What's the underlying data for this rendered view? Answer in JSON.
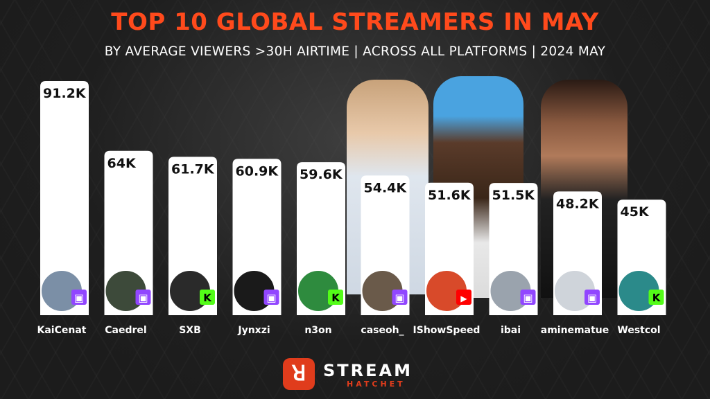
{
  "title": "TOP 10 GLOBAL STREAMERS IN MAY",
  "subtitle": "BY AVERAGE VIEWERS >30H AIRTIME | ACROSS ALL PLATFORMS | 2024 MAY",
  "logo": {
    "main": "STREAM",
    "sub": "HATCHET"
  },
  "colors": {
    "title": "#ff4a1c",
    "bar": "#ffffff",
    "twitch": "#9146ff",
    "kick": "#53fc18",
    "youtube": "#ff0000"
  },
  "chart_data": {
    "type": "bar",
    "categories": [
      "KaiCenat",
      "Caedrel",
      "SXB",
      "Jynxzi",
      "n3on",
      "caseoh_",
      "IShowSpeed",
      "ibai",
      "aminematue",
      "Westcol"
    ],
    "values": [
      91.2,
      64,
      61.7,
      60.9,
      59.6,
      54.4,
      51.6,
      51.5,
      48.2,
      45
    ],
    "value_labels": [
      "91.2K",
      "64K",
      "61.7K",
      "60.9K",
      "59.6K",
      "54.4K",
      "51.6K",
      "51.5K",
      "48.2K",
      "45K"
    ],
    "platforms": [
      "twitch-icon",
      "twitch-icon",
      "kick-icon",
      "twitch-icon",
      "kick-icon",
      "twitch-icon",
      "youtube-icon",
      "twitch-icon",
      "twitch-icon",
      "kick-icon"
    ],
    "unit": "K",
    "ylim": [
      0,
      91.2
    ],
    "grid": false,
    "legend": "none"
  }
}
